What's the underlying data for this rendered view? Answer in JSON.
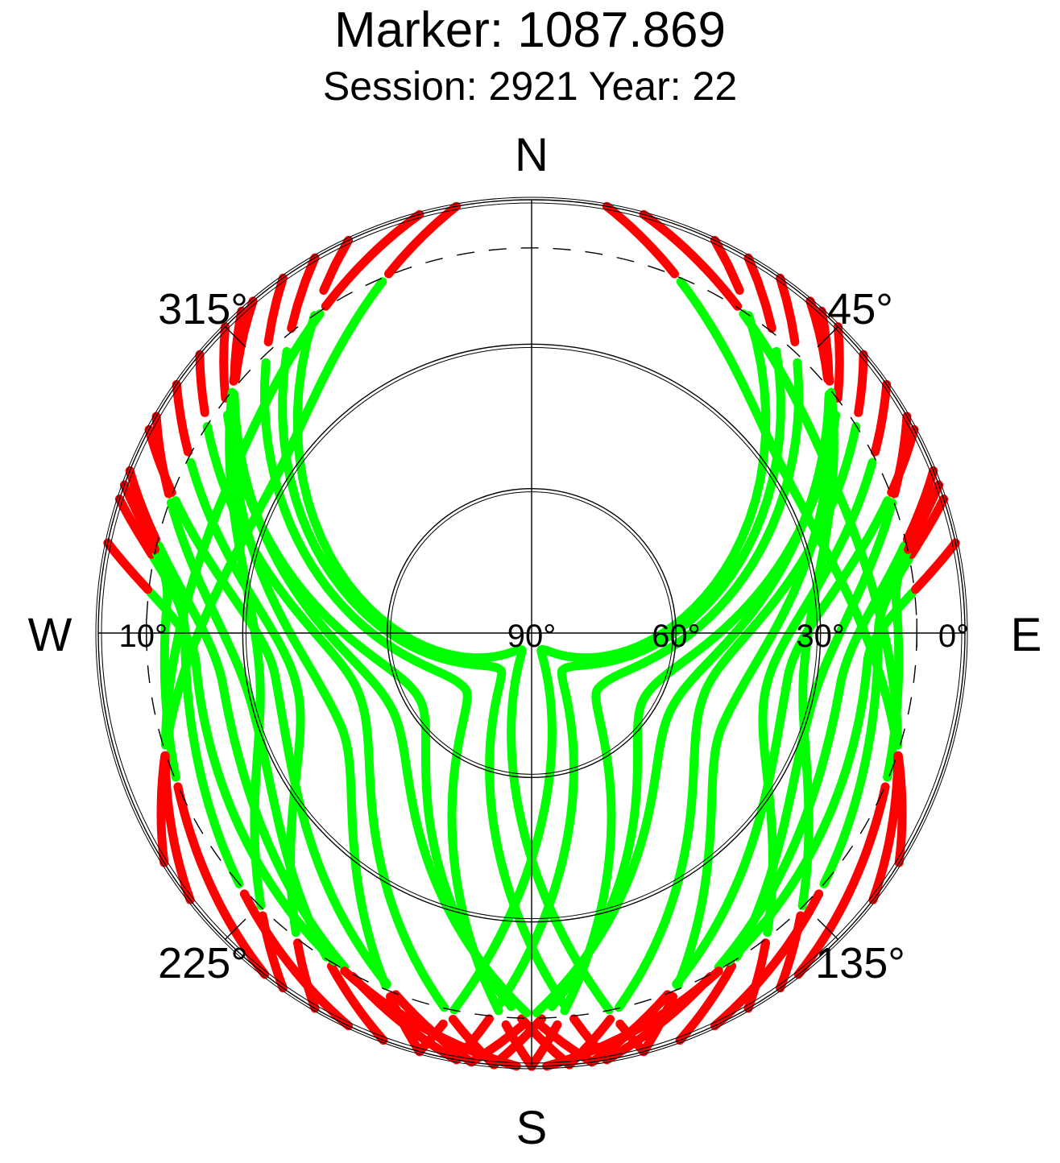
{
  "title": "Marker: 1087.869",
  "subtitle": "Session: 2921 Year: 22",
  "colors": {
    "background": "#ffffff",
    "frame": "#000000",
    "track": "#00ff00",
    "low_elevation": "#ff0000"
  },
  "chart_data": {
    "type": "scatter",
    "projection": "polar-skyplot",
    "direction_labels": {
      "north": "N",
      "east": "E",
      "south": "S",
      "west": "W"
    },
    "azimuth_labels": [
      {
        "azimuth": 45,
        "text": "45°"
      },
      {
        "azimuth": 135,
        "text": "135°"
      },
      {
        "azimuth": 225,
        "text": "225°"
      },
      {
        "azimuth": 315,
        "text": "315°"
      }
    ],
    "elevation_labels": [
      {
        "elevation": 0,
        "text": "0°"
      },
      {
        "elevation": 30,
        "text": "30°"
      },
      {
        "elevation": 60,
        "text": "60°"
      },
      {
        "elevation": 90,
        "text": "90°"
      },
      {
        "elevation": 10,
        "text": "10°"
      }
    ],
    "elevation_circles_deg": [
      0,
      30,
      60
    ],
    "elevation_mask_deg": 10,
    "low_elevation_threshold_deg": 10,
    "north_hole_edge_elevation_deg": 45,
    "tracks": [
      {
        "start_az": 150,
        "peak_az": 103,
        "peak_el": 40,
        "end_az": 55
      },
      {
        "start_az": 160,
        "peak_az": 105,
        "peak_el": 30,
        "end_az": 60
      },
      {
        "start_az": 170,
        "peak_az": 100,
        "peak_el": 25,
        "end_az": 68
      },
      {
        "start_az": 175,
        "peak_az": 110,
        "peak_el": 52,
        "end_az": 50
      },
      {
        "start_az": 185,
        "peak_az": 120,
        "peak_el": 63,
        "end_az": 45
      },
      {
        "start_az": 165,
        "peak_az": 115,
        "peak_el": 46,
        "end_az": 40
      },
      {
        "start_az": 180,
        "peak_az": 130,
        "peak_el": 72,
        "end_az": 35
      },
      {
        "start_az": 190,
        "peak_az": 140,
        "peak_el": 80,
        "end_az": 30
      },
      {
        "start_az": 155,
        "peak_az": 90,
        "peak_el": 18,
        "end_az": 72
      },
      {
        "start_az": 145,
        "peak_az": 96,
        "peak_el": 33,
        "end_az": 40
      },
      {
        "start_az": 195,
        "peak_az": 150,
        "peak_el": 86,
        "end_az": 25
      },
      {
        "start_az": 172,
        "peak_az": 100,
        "peak_el": 36,
        "end_az": 62
      },
      {
        "start_az": 142,
        "peak_az": 85,
        "peak_el": 14,
        "end_az": 70
      },
      {
        "start_az": 188,
        "peak_az": 118,
        "peak_el": 57,
        "end_az": 42
      },
      {
        "start_az": 178,
        "peak_az": 95,
        "peak_el": 20,
        "end_az": 78
      },
      {
        "start_az": 210,
        "peak_az": 257,
        "peak_el": 40,
        "end_az": 305
      },
      {
        "start_az": 200,
        "peak_az": 255,
        "peak_el": 30,
        "end_az": 300
      },
      {
        "start_az": 190,
        "peak_az": 260,
        "peak_el": 25,
        "end_az": 292
      },
      {
        "start_az": 185,
        "peak_az": 250,
        "peak_el": 52,
        "end_az": 310
      },
      {
        "start_az": 175,
        "peak_az": 240,
        "peak_el": 63,
        "end_az": 315
      },
      {
        "start_az": 195,
        "peak_az": 245,
        "peak_el": 46,
        "end_az": 320
      },
      {
        "start_az": 180,
        "peak_az": 230,
        "peak_el": 72,
        "end_az": 325
      },
      {
        "start_az": 170,
        "peak_az": 220,
        "peak_el": 80,
        "end_az": 330
      },
      {
        "start_az": 205,
        "peak_az": 270,
        "peak_el": 18,
        "end_az": 288
      },
      {
        "start_az": 215,
        "peak_az": 264,
        "peak_el": 33,
        "end_az": 320
      },
      {
        "start_az": 165,
        "peak_az": 210,
        "peak_el": 86,
        "end_az": 335
      },
      {
        "start_az": 188,
        "peak_az": 260,
        "peak_el": 36,
        "end_az": 298
      },
      {
        "start_az": 218,
        "peak_az": 275,
        "peak_el": 14,
        "end_az": 290
      },
      {
        "start_az": 172,
        "peak_az": 242,
        "peak_el": 57,
        "end_az": 318
      },
      {
        "start_az": 182,
        "peak_az": 265,
        "peak_el": 20,
        "end_az": 282
      },
      {
        "start_az": 232,
        "peak_az": 292,
        "peak_el": 20,
        "end_az": 345
      },
      {
        "start_az": 238,
        "peak_az": 298,
        "peak_el": 28,
        "end_az": 350
      },
      {
        "start_az": 128,
        "peak_az": 68,
        "peak_el": 20,
        "end_az": 15
      },
      {
        "start_az": 122,
        "peak_az": 62,
        "peak_el": 28,
        "end_az": 10
      }
    ]
  }
}
